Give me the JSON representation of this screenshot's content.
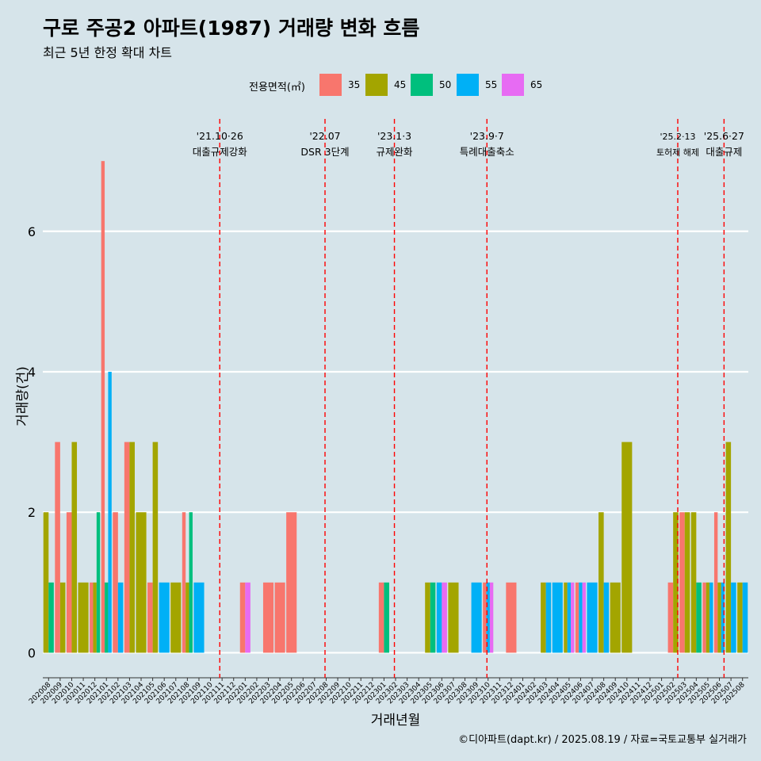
{
  "title": "구로 주공2 아파트(1987) 거래량 변화 흐름",
  "subtitle": "최근 5년 한정 확대 차트",
  "caption": "©디아파트(dapt.kr) / 2025.08.19 / 자료=국토교통부 실거래가",
  "legend": {
    "title": "전용면적(㎡)",
    "items": [
      {
        "label": "35",
        "color": "#f8766d"
      },
      {
        "label": "45",
        "color": "#a3a500"
      },
      {
        "label": "50",
        "color": "#00bf7d"
      },
      {
        "label": "55",
        "color": "#00b0f6"
      },
      {
        "label": "65",
        "color": "#e76bf3"
      }
    ]
  },
  "chart_data": {
    "type": "bar",
    "xlabel": "거래년월",
    "ylabel": "거래량(건)",
    "ylim": [
      -0.3,
      7.6
    ],
    "yticks": [
      0,
      2,
      4,
      6
    ],
    "categories": [
      "202008",
      "202009",
      "202010",
      "202011",
      "202012",
      "202101",
      "202102",
      "202103",
      "202104",
      "202105",
      "202106",
      "202107",
      "202108",
      "202109",
      "202110",
      "202111",
      "202112",
      "202201",
      "202202",
      "202203",
      "202204",
      "202205",
      "202206",
      "202207",
      "202208",
      "202209",
      "202210",
      "202211",
      "202212",
      "202301",
      "202302",
      "202303",
      "202304",
      "202305",
      "202306",
      "202307",
      "202308",
      "202309",
      "202310",
      "202311",
      "202312",
      "202401",
      "202402",
      "202403",
      "202404",
      "202405",
      "202406",
      "202407",
      "202408",
      "202409",
      "202410",
      "202411",
      "202412",
      "202501",
      "202502",
      "202503",
      "202504",
      "202505",
      "202506",
      "202507",
      "202508"
    ],
    "series": [
      {
        "name": "35",
        "color": "#f8766d",
        "values": [
          0,
          3,
          2,
          0,
          1,
          7,
          2,
          3,
          0,
          1,
          0,
          0,
          2,
          0,
          0,
          0,
          0,
          1,
          0,
          1,
          1,
          2,
          0,
          0,
          0,
          0,
          0,
          0,
          0,
          1,
          0,
          0,
          0,
          0,
          0,
          0,
          0,
          0,
          1,
          0,
          1,
          0,
          0,
          0,
          0,
          0,
          1,
          0,
          0,
          0,
          0,
          0,
          0,
          0,
          1,
          2,
          0,
          1,
          2,
          0,
          0
        ]
      },
      {
        "name": "45",
        "color": "#a3a500",
        "values": [
          2,
          1,
          3,
          1,
          1,
          0,
          0,
          3,
          2,
          3,
          0,
          1,
          1,
          0,
          0,
          0,
          0,
          0,
          0,
          0,
          0,
          0,
          0,
          0,
          0,
          0,
          0,
          0,
          0,
          0,
          0,
          0,
          0,
          1,
          0,
          1,
          0,
          0,
          0,
          0,
          0,
          0,
          0,
          1,
          0,
          1,
          0,
          0,
          2,
          1,
          3,
          0,
          0,
          0,
          2,
          2,
          2,
          1,
          1,
          3,
          1
        ]
      },
      {
        "name": "50",
        "color": "#00bf7d",
        "values": [
          1,
          0,
          0,
          0,
          2,
          1,
          0,
          0,
          0,
          0,
          0,
          0,
          2,
          0,
          0,
          0,
          0,
          0,
          0,
          0,
          0,
          0,
          0,
          0,
          0,
          0,
          0,
          0,
          0,
          1,
          0,
          0,
          0,
          1,
          0,
          0,
          0,
          0,
          0,
          0,
          0,
          0,
          0,
          0,
          0,
          0,
          0,
          0,
          0,
          0,
          0,
          0,
          0,
          0,
          0,
          0,
          1,
          0,
          0,
          0,
          0
        ]
      },
      {
        "name": "55",
        "color": "#00b0f6",
        "values": [
          0,
          0,
          0,
          0,
          0,
          4,
          1,
          0,
          0,
          0,
          1,
          0,
          0,
          1,
          0,
          0,
          0,
          0,
          0,
          0,
          0,
          0,
          0,
          0,
          0,
          0,
          0,
          0,
          0,
          0,
          0,
          0,
          0,
          0,
          1,
          0,
          0,
          1,
          1,
          0,
          0,
          0,
          0,
          1,
          1,
          1,
          1,
          1,
          1,
          0,
          0,
          0,
          0,
          0,
          0,
          0,
          0,
          1,
          1,
          1,
          1
        ]
      },
      {
        "name": "65",
        "color": "#e76bf3",
        "values": [
          0,
          0,
          0,
          0,
          0,
          0,
          0,
          0,
          0,
          0,
          0,
          0,
          0,
          0,
          0,
          0,
          0,
          1,
          0,
          0,
          0,
          0,
          0,
          0,
          0,
          0,
          0,
          0,
          0,
          0,
          0,
          0,
          0,
          0,
          1,
          0,
          0,
          0,
          1,
          0,
          0,
          0,
          0,
          0,
          0,
          1,
          1,
          0,
          0,
          0,
          0,
          0,
          0,
          0,
          0,
          0,
          0,
          0,
          0,
          0,
          0
        ]
      }
    ],
    "annotations": [
      {
        "x": 14.8,
        "line1": "'21.10·26",
        "line2": "대출규제강화"
      },
      {
        "x": 23.9,
        "line1": "'22.07",
        "line2": "DSR 3단계"
      },
      {
        "x": 29.9,
        "line1": "'23.1·3",
        "line2": "규제완화"
      },
      {
        "x": 37.9,
        "line1": "'23.9·7",
        "line2": "특례대출축소"
      },
      {
        "x": 54.4,
        "line1": "'25.2·13",
        "line2": "토허제 해제",
        "small": true
      },
      {
        "x": 58.4,
        "line1": "'25.6·27",
        "line2": "대출규제"
      }
    ],
    "grid": true,
    "legend_position": "top"
  }
}
